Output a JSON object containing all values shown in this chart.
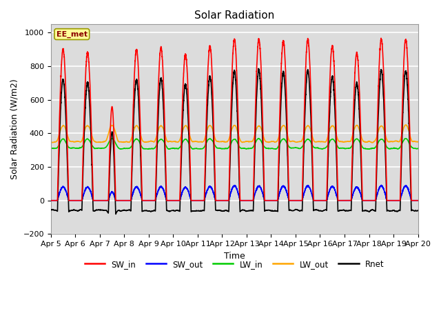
{
  "title": "Solar Radiation",
  "ylabel": "Solar Radiation (W/m2)",
  "xlabel": "Time",
  "station_label": "EE_met",
  "ylim": [
    -200,
    1050
  ],
  "x_tick_labels": [
    "Apr 5",
    "Apr 6",
    "Apr 7",
    "Apr 8",
    "Apr 9",
    "Apr 10",
    "Apr 11",
    "Apr 12",
    "Apr 13",
    "Apr 14",
    "Apr 15",
    "Apr 16",
    "Apr 17",
    "Apr 18",
    "Apr 19",
    "Apr 20"
  ],
  "series": {
    "SW_in": {
      "color": "#FF0000",
      "lw": 1.2
    },
    "SW_out": {
      "color": "#0000FF",
      "lw": 1.2
    },
    "LW_in": {
      "color": "#00CC00",
      "lw": 1.2
    },
    "LW_out": {
      "color": "#FFA500",
      "lw": 1.2
    },
    "Rnet": {
      "color": "#000000",
      "lw": 1.2
    }
  },
  "bg_color": "#DCDCDC",
  "grid_color": "#FFFFFF",
  "title_fontsize": 11,
  "label_fontsize": 9,
  "tick_fontsize": 8,
  "n_days": 15,
  "pts_per_day": 288,
  "sw_in_peaks": [
    900,
    880,
    560,
    900,
    910,
    870,
    920,
    960,
    960,
    950,
    960,
    920,
    880,
    960,
    960
  ],
  "lw_out_night": 350,
  "lw_out_day_extra": 100,
  "lw_in_base": 310,
  "lw_in_day_extra": 60,
  "rnet_night": -60
}
